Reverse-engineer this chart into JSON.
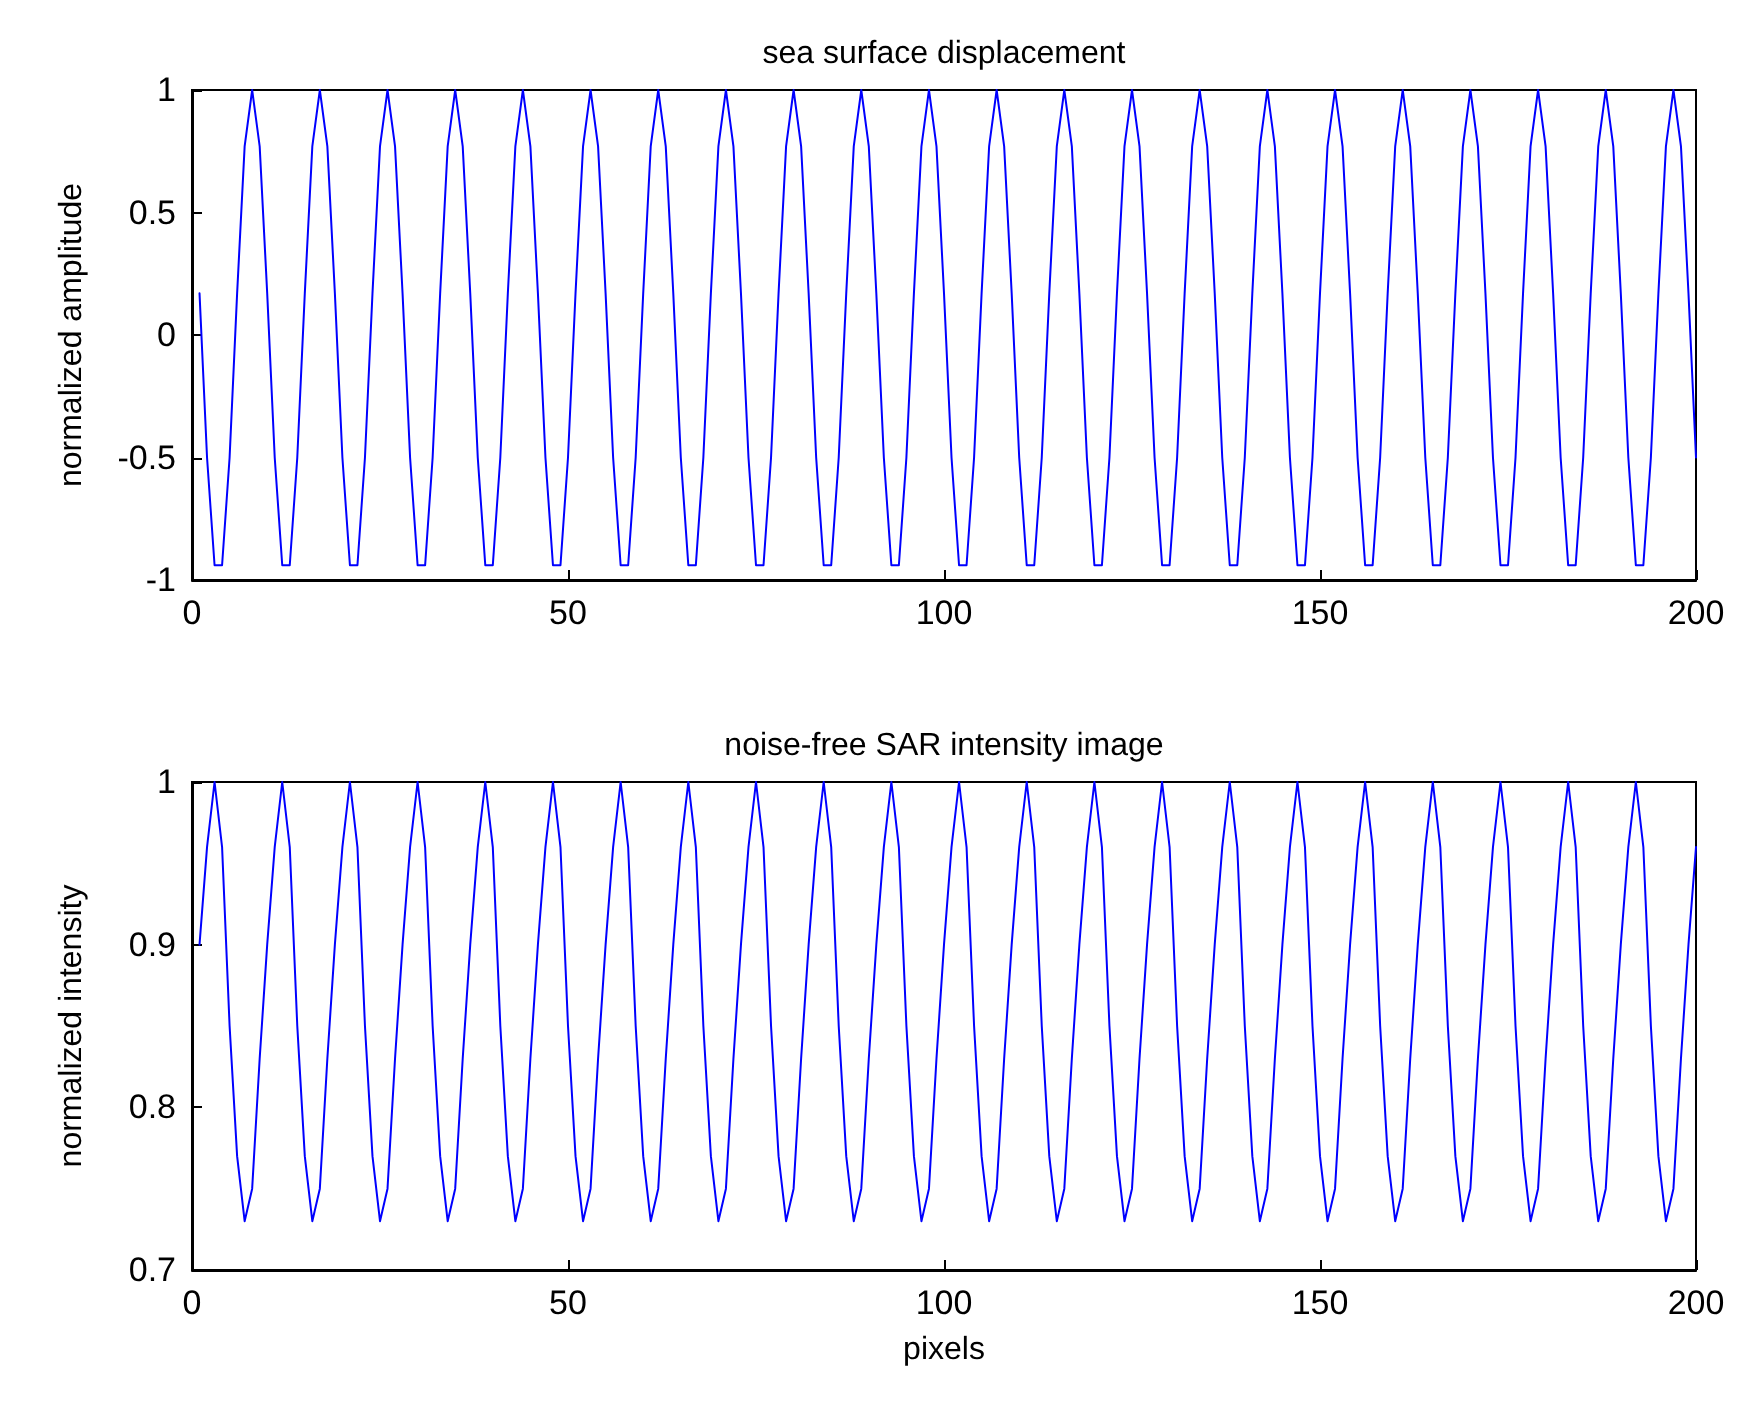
{
  "chart_data": [
    {
      "type": "line",
      "title": "sea surface displacement",
      "ylabel": "normalized amplitude",
      "xlim": [
        0,
        200
      ],
      "xticks": [
        0,
        50,
        100,
        150,
        200
      ],
      "ylim": [
        -1,
        1
      ],
      "yticks": [
        -1,
        -0.5,
        0,
        0.5,
        1
      ],
      "grid": false,
      "marker": "none",
      "x": [
        1,
        2,
        3,
        4,
        5,
        6,
        7,
        8,
        9,
        10,
        11,
        12,
        13,
        14,
        15,
        16,
        17,
        18,
        19,
        20,
        21,
        22,
        23,
        24,
        25,
        26,
        27,
        28,
        29,
        30,
        31,
        32,
        33,
        34,
        35,
        36,
        37,
        38,
        39,
        40,
        41,
        42,
        43,
        44,
        45,
        46,
        47,
        48,
        49,
        50,
        51,
        52,
        53,
        54,
        55,
        56,
        57,
        58,
        59,
        60,
        61,
        62,
        63,
        64,
        65,
        66,
        67,
        68,
        69,
        70,
        71,
        72,
        73,
        74,
        75,
        76,
        77,
        78,
        79,
        80,
        81,
        82,
        83,
        84,
        85,
        86,
        87,
        88,
        89,
        90,
        91,
        92,
        93,
        94,
        95,
        96,
        97,
        98,
        99,
        100,
        101,
        102,
        103,
        104,
        105,
        106,
        107,
        108,
        109,
        110,
        111,
        112,
        113,
        114,
        115,
        116,
        117,
        118,
        119,
        120,
        121,
        122,
        123,
        124,
        125,
        126,
        127,
        128,
        129,
        130,
        131,
        132,
        133,
        134,
        135,
        136,
        137,
        138,
        139,
        140,
        141,
        142,
        143,
        144,
        145,
        146,
        147,
        148,
        149,
        150,
        151,
        152,
        153,
        154,
        155,
        156,
        157,
        158,
        159,
        160,
        161,
        162,
        163,
        164,
        165,
        166,
        167,
        168,
        169,
        170,
        171,
        172,
        173,
        174,
        175,
        176,
        177,
        178,
        179,
        180,
        181,
        182,
        183,
        184,
        185,
        186,
        187,
        188,
        189,
        190,
        191,
        192,
        193,
        194,
        195,
        196,
        197,
        198,
        199,
        200
      ],
      "series": [
        {
          "color": "#0000ff",
          "values": [
            0.17,
            -0.5,
            -0.94,
            -0.94,
            -0.5,
            0.17,
            0.77,
            1,
            0.77,
            0.17,
            -0.5,
            -0.94,
            -0.94,
            -0.5,
            0.17,
            0.77,
            1,
            0.77,
            0.17,
            -0.5,
            -0.94,
            -0.94,
            -0.5,
            0.17,
            0.77,
            1,
            0.77,
            0.17,
            -0.5,
            -0.94,
            -0.94,
            -0.5,
            0.17,
            0.77,
            1,
            0.77,
            0.17,
            -0.5,
            -0.94,
            -0.94,
            -0.5,
            0.17,
            0.77,
            1,
            0.77,
            0.17,
            -0.5,
            -0.94,
            -0.94,
            -0.5,
            0.17,
            0.77,
            1,
            0.77,
            0.17,
            -0.5,
            -0.94,
            -0.94,
            -0.5,
            0.17,
            0.77,
            1,
            0.77,
            0.17,
            -0.5,
            -0.94,
            -0.94,
            -0.5,
            0.17,
            0.77,
            1,
            0.77,
            0.17,
            -0.5,
            -0.94,
            -0.94,
            -0.5,
            0.17,
            0.77,
            1,
            0.77,
            0.17,
            -0.5,
            -0.94,
            -0.94,
            -0.5,
            0.17,
            0.77,
            1,
            0.77,
            0.17,
            -0.5,
            -0.94,
            -0.94,
            -0.5,
            0.17,
            0.77,
            1,
            0.77,
            0.17,
            -0.5,
            -0.94,
            -0.94,
            -0.5,
            0.17,
            0.77,
            1,
            0.77,
            0.17,
            -0.5,
            -0.94,
            -0.94,
            -0.5,
            0.17,
            0.77,
            1,
            0.77,
            0.17,
            -0.5,
            -0.94,
            -0.94,
            -0.5,
            0.17,
            0.77,
            1,
            0.77,
            0.17,
            -0.5,
            -0.94,
            -0.94,
            -0.5,
            0.17,
            0.77,
            1,
            0.77,
            0.17,
            -0.5,
            -0.94,
            -0.94,
            -0.5,
            0.17,
            0.77,
            1,
            0.77,
            0.17,
            -0.5,
            -0.94,
            -0.94,
            -0.5,
            0.17,
            0.77,
            1,
            0.77,
            0.17,
            -0.5,
            -0.94,
            -0.94,
            -0.5,
            0.17,
            0.77,
            1,
            0.77,
            0.17,
            -0.5,
            -0.94,
            -0.94,
            -0.5,
            0.17,
            0.77,
            1,
            0.77,
            0.17,
            -0.5,
            -0.94,
            -0.94,
            -0.5,
            0.17,
            0.77,
            1,
            0.77,
            0.17,
            -0.5,
            -0.94,
            -0.94,
            -0.5,
            0.17,
            0.77,
            1,
            0.77,
            0.17,
            -0.5,
            -0.94,
            -0.94,
            -0.5,
            0.17,
            0.77,
            1,
            0.77,
            0.17,
            -0.5
          ]
        }
      ]
    },
    {
      "type": "line",
      "title": "noise-free SAR intensity image",
      "xlabel": "pixels",
      "ylabel": "normalized intensity",
      "xlim": [
        0,
        200
      ],
      "xticks": [
        0,
        50,
        100,
        150,
        200
      ],
      "ylim": [
        0.7,
        1
      ],
      "yticks": [
        0.7,
        0.8,
        0.9,
        1
      ],
      "grid": false,
      "marker": "none",
      "x": [
        1,
        2,
        3,
        4,
        5,
        6,
        7,
        8,
        9,
        10,
        11,
        12,
        13,
        14,
        15,
        16,
        17,
        18,
        19,
        20,
        21,
        22,
        23,
        24,
        25,
        26,
        27,
        28,
        29,
        30,
        31,
        32,
        33,
        34,
        35,
        36,
        37,
        38,
        39,
        40,
        41,
        42,
        43,
        44,
        45,
        46,
        47,
        48,
        49,
        50,
        51,
        52,
        53,
        54,
        55,
        56,
        57,
        58,
        59,
        60,
        61,
        62,
        63,
        64,
        65,
        66,
        67,
        68,
        69,
        70,
        71,
        72,
        73,
        74,
        75,
        76,
        77,
        78,
        79,
        80,
        81,
        82,
        83,
        84,
        85,
        86,
        87,
        88,
        89,
        90,
        91,
        92,
        93,
        94,
        95,
        96,
        97,
        98,
        99,
        100,
        101,
        102,
        103,
        104,
        105,
        106,
        107,
        108,
        109,
        110,
        111,
        112,
        113,
        114,
        115,
        116,
        117,
        118,
        119,
        120,
        121,
        122,
        123,
        124,
        125,
        126,
        127,
        128,
        129,
        130,
        131,
        132,
        133,
        134,
        135,
        136,
        137,
        138,
        139,
        140,
        141,
        142,
        143,
        144,
        145,
        146,
        147,
        148,
        149,
        150,
        151,
        152,
        153,
        154,
        155,
        156,
        157,
        158,
        159,
        160,
        161,
        162,
        163,
        164,
        165,
        166,
        167,
        168,
        169,
        170,
        171,
        172,
        173,
        174,
        175,
        176,
        177,
        178,
        179,
        180,
        181,
        182,
        183,
        184,
        185,
        186,
        187,
        188,
        189,
        190,
        191,
        192,
        193,
        194,
        195,
        196,
        197,
        198,
        199,
        200
      ],
      "series": [
        {
          "color": "#0000ff",
          "values": [
            0.9,
            0.96,
            1,
            0.96,
            0.85,
            0.77,
            0.73,
            0.75,
            0.83,
            0.9,
            0.96,
            1,
            0.96,
            0.85,
            0.77,
            0.73,
            0.75,
            0.83,
            0.9,
            0.96,
            1,
            0.96,
            0.85,
            0.77,
            0.73,
            0.75,
            0.83,
            0.9,
            0.96,
            1,
            0.96,
            0.85,
            0.77,
            0.73,
            0.75,
            0.83,
            0.9,
            0.96,
            1,
            0.96,
            0.85,
            0.77,
            0.73,
            0.75,
            0.83,
            0.9,
            0.96,
            1,
            0.96,
            0.85,
            0.77,
            0.73,
            0.75,
            0.83,
            0.9,
            0.96,
            1,
            0.96,
            0.85,
            0.77,
            0.73,
            0.75,
            0.83,
            0.9,
            0.96,
            1,
            0.96,
            0.85,
            0.77,
            0.73,
            0.75,
            0.83,
            0.9,
            0.96,
            1,
            0.96,
            0.85,
            0.77,
            0.73,
            0.75,
            0.83,
            0.9,
            0.96,
            1,
            0.96,
            0.85,
            0.77,
            0.73,
            0.75,
            0.83,
            0.9,
            0.96,
            1,
            0.96,
            0.85,
            0.77,
            0.73,
            0.75,
            0.83,
            0.9,
            0.96,
            1,
            0.96,
            0.85,
            0.77,
            0.73,
            0.75,
            0.83,
            0.9,
            0.96,
            1,
            0.96,
            0.85,
            0.77,
            0.73,
            0.75,
            0.83,
            0.9,
            0.96,
            1,
            0.96,
            0.85,
            0.77,
            0.73,
            0.75,
            0.83,
            0.9,
            0.96,
            1,
            0.96,
            0.85,
            0.77,
            0.73,
            0.75,
            0.83,
            0.9,
            0.96,
            1,
            0.96,
            0.85,
            0.77,
            0.73,
            0.75,
            0.83,
            0.9,
            0.96,
            1,
            0.96,
            0.85,
            0.77,
            0.73,
            0.75,
            0.83,
            0.9,
            0.96,
            1,
            0.96,
            0.85,
            0.77,
            0.73,
            0.75,
            0.83,
            0.9,
            0.96,
            1,
            0.96,
            0.85,
            0.77,
            0.73,
            0.75,
            0.83,
            0.9,
            0.96,
            1,
            0.96,
            0.85,
            0.77,
            0.73,
            0.75,
            0.83,
            0.9,
            0.96,
            1,
            0.96,
            0.85,
            0.77,
            0.73,
            0.75,
            0.83,
            0.9,
            0.96,
            1,
            0.96,
            0.85,
            0.77,
            0.73,
            0.75,
            0.83,
            0.9,
            0.96
          ]
        }
      ]
    }
  ]
}
